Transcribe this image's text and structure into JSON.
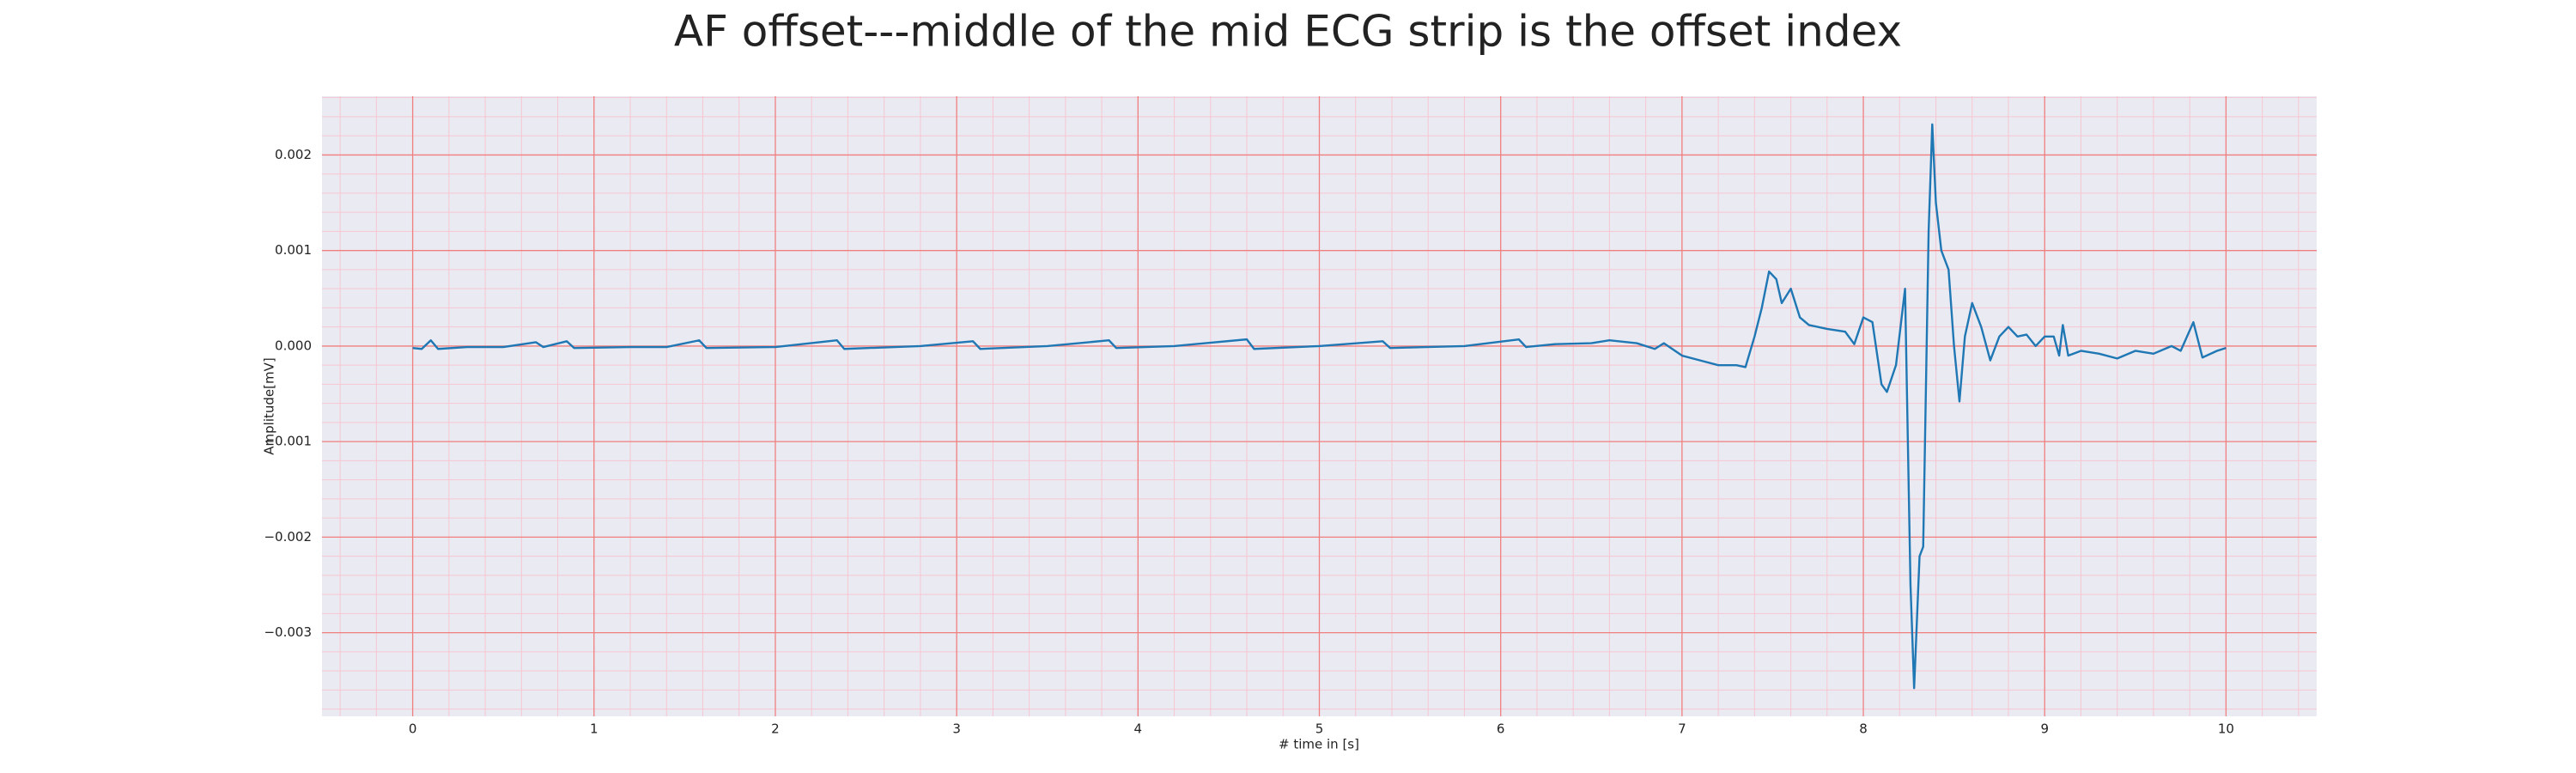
{
  "chart_data": {
    "type": "line",
    "title": "AF offset---middle of the mid ECG strip is the offset index",
    "x_label": "# time in [s]",
    "y_label": "Amplitude[mV]",
    "color": "#1f77b4",
    "grid": true,
    "minor_grid": true,
    "grid_color": "#f08080",
    "minor_grid_color": "#f7c6d0",
    "background": "#eaeaf2",
    "x": [
      0,
      0.05,
      0.1,
      0.14,
      0.3,
      0.5,
      0.68,
      0.72,
      0.85,
      0.89,
      1.2,
      1.4,
      1.58,
      1.62,
      2.0,
      2.34,
      2.38,
      2.8,
      3.09,
      3.13,
      3.5,
      3.84,
      3.88,
      4.2,
      4.6,
      4.64,
      5.0,
      5.35,
      5.39,
      5.8,
      6.1,
      6.14,
      6.3,
      6.5,
      6.6,
      6.75,
      6.85,
      6.9,
      7.0,
      7.1,
      7.2,
      7.3,
      7.35,
      7.4,
      7.44,
      7.48,
      7.52,
      7.55,
      7.6,
      7.65,
      7.7,
      7.8,
      7.9,
      7.95,
      8.0,
      8.05,
      8.1,
      8.13,
      8.18,
      8.23,
      8.26,
      8.28,
      8.31,
      8.33,
      8.36,
      8.38,
      8.4,
      8.43,
      8.47,
      8.5,
      8.53,
      8.56,
      8.6,
      8.65,
      8.7,
      8.75,
      8.8,
      8.85,
      8.9,
      8.95,
      9.0,
      9.05,
      9.08,
      9.1,
      9.13,
      9.2,
      9.3,
      9.4,
      9.5,
      9.6,
      9.7,
      9.75,
      9.82,
      9.87,
      9.95,
      10
    ],
    "values": [
      -2e-05,
      -3e-05,
      6e-05,
      -3e-05,
      -1e-05,
      -1e-05,
      4e-05,
      -1e-05,
      5e-05,
      -2e-05,
      -1e-05,
      -1e-05,
      6e-05,
      -2e-05,
      -1e-05,
      6e-05,
      -3e-05,
      0,
      5e-05,
      -3e-05,
      0,
      6e-05,
      -2e-05,
      0,
      7e-05,
      -3e-05,
      0,
      5e-05,
      -2e-05,
      0,
      7e-05,
      -1e-05,
      2e-05,
      3e-05,
      6e-05,
      3e-05,
      -3e-05,
      3e-05,
      -0.0001,
      -0.00015,
      -0.0002,
      -0.0002,
      -0.00022,
      0.0001,
      0.0004,
      0.00078,
      0.0007,
      0.00045,
      0.0006,
      0.0003,
      0.00022,
      0.00018,
      0.00015,
      2e-05,
      0.0003,
      0.00025,
      -0.0004,
      -0.00048,
      -0.0002,
      0.0006,
      -0.0025,
      -0.00358,
      -0.0022,
      -0.0021,
      0.0012,
      0.00232,
      0.0015,
      0.001,
      0.0008,
      0,
      -0.00058,
      0.0001,
      0.00045,
      0.0002,
      -0.00015,
      0.0001,
      0.0002,
      0.0001,
      0.00012,
      0,
      0.0001,
      0.0001,
      -0.0001,
      0.00022,
      -0.0001,
      -5e-05,
      -8e-05,
      -0.00013,
      -5e-05,
      -8e-05,
      0,
      -5e-05,
      0.00025,
      -0.00012,
      -5e-05,
      -2e-05
    ],
    "xlim": [
      -0.5,
      10.5
    ],
    "xticks": [
      0,
      1,
      2,
      3,
      4,
      5,
      6,
      7,
      8,
      9,
      10
    ],
    "ylim": [
      -0.003875,
      0.002615
    ],
    "yticks": [
      {
        "value": -0.003,
        "label": "−0.003"
      },
      {
        "value": -0.002,
        "label": "−0.002"
      },
      {
        "value": -0.001,
        "label": "−0.001"
      },
      {
        "value": 0,
        "label": "0.000"
      },
      {
        "value": 0.001,
        "label": "0.001"
      },
      {
        "value": 0.002,
        "label": "0.002"
      }
    ]
  }
}
